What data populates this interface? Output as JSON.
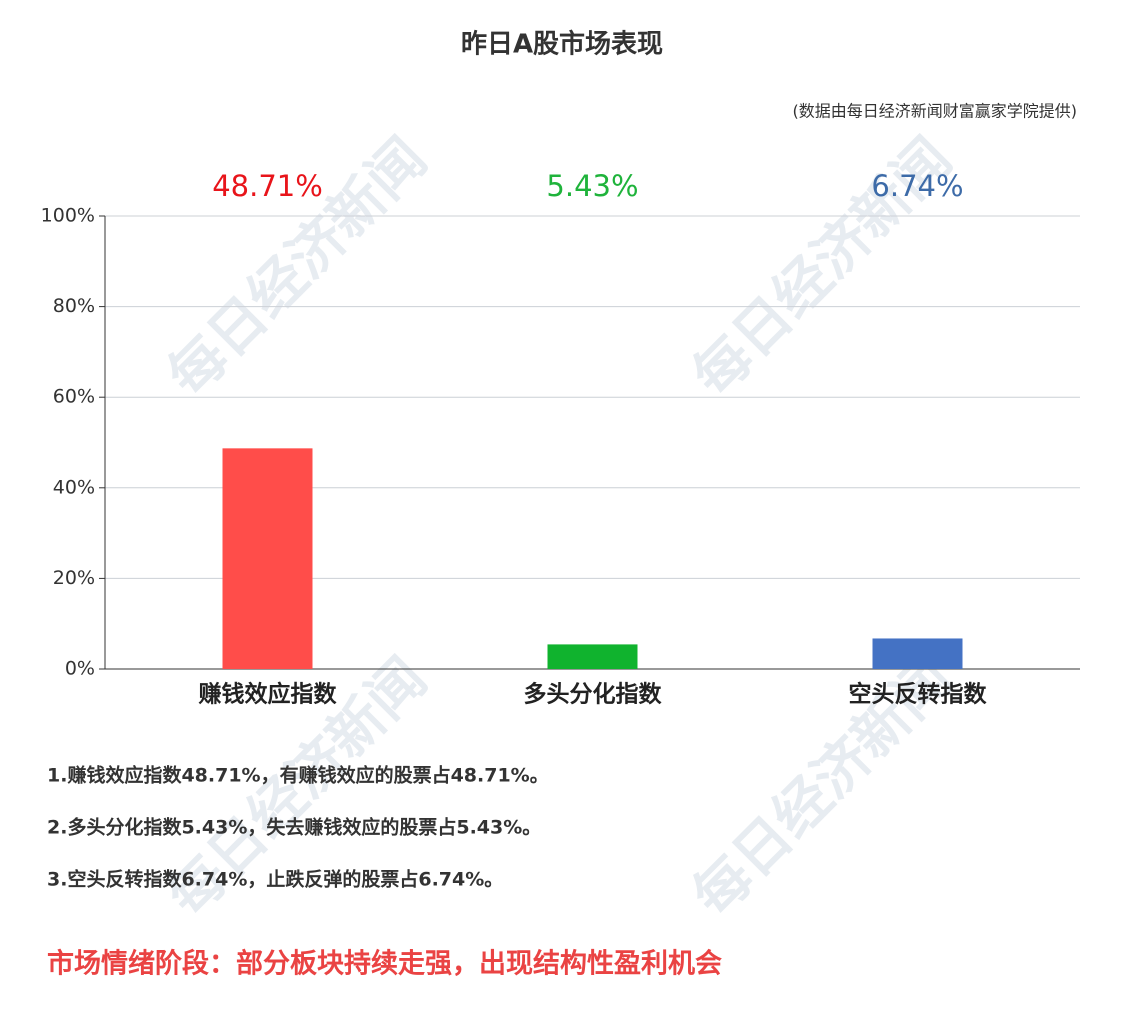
{
  "chart_data": {
    "type": "bar",
    "title": "昨日A股市场表现",
    "subtitle": "(数据由每日经济新闻财富赢家学院提供)",
    "categories": [
      "赚钱效应指数",
      "多头分化指数",
      "空头反转指数"
    ],
    "values": [
      48.71,
      5.43,
      6.74
    ],
    "value_labels": [
      "48.71%",
      "5.43%",
      "6.74%"
    ],
    "colors": [
      "#ff4d4a",
      "#10b32e",
      "#4472c4"
    ],
    "label_colors": [
      "#e8141a",
      "#1fb33b",
      "#3d6ba8"
    ],
    "ylim": [
      0,
      100
    ],
    "yticks": [
      {
        "value": 0,
        "label": "0%"
      },
      {
        "value": 20,
        "label": "20%"
      },
      {
        "value": 40,
        "label": "40%"
      },
      {
        "value": 60,
        "label": "60%"
      },
      {
        "value": 80,
        "label": "80%"
      },
      {
        "value": 100,
        "label": "100%"
      }
    ],
    "grid": true
  },
  "notes": [
    "1.赚钱效应指数48.71%，有赚钱效应的股票占48.71%。",
    "2.多头分化指数5.43%，失去赚钱效应的股票占5.43%。",
    "3.空头反转指数6.74%，止跌反弹的股票占6.74%。"
  ],
  "stage": "市场情绪阶段：部分板块持续走强，出现结构性盈利机会",
  "watermark": "每日经济新闻"
}
